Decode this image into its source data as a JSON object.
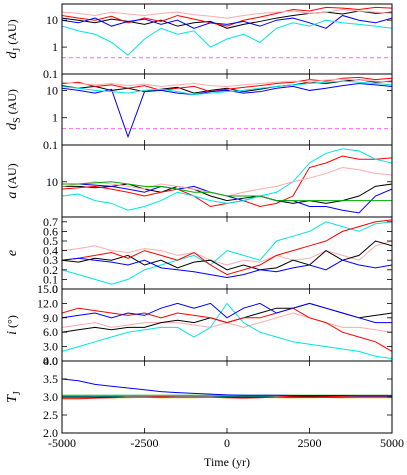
{
  "chart_data": {
    "type": "line",
    "xlabel": "Time (yr)",
    "xlim": [
      -5000,
      5000
    ],
    "xticks": [
      -5000,
      -2500,
      0,
      2500,
      5000
    ],
    "x": [
      -5000,
      -4500,
      -4000,
      -3500,
      -3000,
      -2500,
      -2000,
      -1500,
      -1000,
      -500,
      0,
      500,
      1000,
      1500,
      2000,
      2500,
      3000,
      3500,
      4000,
      4500,
      5000
    ],
    "panels": [
      {
        "ylabel": {
          "text": "d",
          "sub": "J",
          "after": " (AU)"
        },
        "log": true,
        "ylim": [
          0.1,
          40
        ],
        "yticks": [
          0.1,
          1,
          10
        ],
        "hline": {
          "value": 0.4,
          "color": "#ff66ff",
          "dashed": true
        },
        "series": [
          {
            "color": "#000000",
            "values": [
              12,
              10,
              8,
              11,
              9,
              7,
              10,
              6,
              8,
              9,
              5,
              7,
              9,
              12,
              15,
              18,
              20,
              17,
              22,
              18,
              20
            ]
          },
          {
            "color": "#ff0000",
            "values": [
              15,
              12,
              10,
              14,
              8,
              12,
              9,
              15,
              11,
              8,
              6,
              10,
              13,
              18,
              25,
              22,
              30,
              28,
              25,
              30,
              28
            ]
          },
          {
            "color": "#0000ff",
            "values": [
              10,
              8,
              12,
              6,
              9,
              11,
              7,
              10,
              5,
              8,
              7,
              9,
              6,
              10,
              12,
              8,
              5,
              15,
              10,
              8,
              12
            ]
          },
          {
            "color": "#00e5e5",
            "values": [
              6,
              4,
              3,
              1.5,
              0.5,
              2,
              5,
              3,
              4,
              1,
              2,
              3,
              1.5,
              5,
              8,
              6,
              10,
              8,
              7,
              6,
              5
            ]
          },
          {
            "color": "#ffaaaa",
            "values": [
              20,
              18,
              15,
              20,
              17,
              15,
              18,
              20,
              16,
              14,
              12,
              15,
              18,
              20,
              22,
              18,
              20,
              25,
              22,
              20,
              18
            ]
          }
        ]
      },
      {
        "ylabel": {
          "text": "d",
          "sub": "S",
          "after": " (AU)"
        },
        "log": true,
        "ylim": [
          0.1,
          40
        ],
        "yticks": [
          0.1,
          1,
          10
        ],
        "hline": {
          "value": 0.4,
          "color": "#ff66ff",
          "dashed": true
        },
        "series": [
          {
            "color": "#000000",
            "values": [
              15,
              12,
              14,
              10,
              12,
              9,
              11,
              13,
              8,
              10,
              12,
              9,
              11,
              14,
              16,
              20,
              18,
              22,
              25,
              20,
              22
            ]
          },
          {
            "color": "#ff0000",
            "values": [
              18,
              20,
              14,
              16,
              12,
              15,
              10,
              12,
              14,
              9,
              11,
              13,
              15,
              18,
              20,
              25,
              22,
              28,
              30,
              25,
              28
            ]
          },
          {
            "color": "#0000ff",
            "values": [
              12,
              10,
              8,
              11,
              0.2,
              9,
              10,
              8,
              7,
              9,
              10,
              8,
              9,
              12,
              14,
              10,
              12,
              15,
              18,
              16,
              14
            ]
          },
          {
            "color": "#00e5e5",
            "values": [
              14,
              12,
              10,
              9,
              8,
              10,
              11,
              9,
              7,
              8,
              9,
              10,
              12,
              14,
              16,
              18,
              20,
              22,
              20,
              18,
              16
            ]
          },
          {
            "color": "#ffaaaa",
            "values": [
              20,
              18,
              16,
              18,
              15,
              17,
              14,
              16,
              18,
              15,
              14,
              16,
              18,
              20,
              22,
              20,
              24,
              26,
              24,
              22,
              20
            ]
          }
        ]
      },
      {
        "ylabel": {
          "text": "a",
          "after": " (AU)"
        },
        "log": true,
        "ylim": [
          1.8,
          60
        ],
        "yticks": [
          10
        ],
        "series": [
          {
            "color": "#000000",
            "values": [
              8,
              8,
              7.5,
              8,
              9,
              7,
              6,
              8,
              7,
              5,
              4,
              4.5,
              5,
              4,
              3.5,
              4,
              3.5,
              4,
              5,
              8,
              9
            ]
          },
          {
            "color": "#ff0000",
            "values": [
              7,
              7.5,
              8,
              7,
              6,
              5,
              6,
              7,
              5,
              3,
              3.5,
              4,
              3,
              3.5,
              5,
              20,
              25,
              35,
              30,
              30,
              32
            ]
          },
          {
            "color": "#0000ff",
            "values": [
              9,
              9,
              8.5,
              8,
              7,
              6,
              8,
              7,
              8,
              6,
              5,
              4,
              5,
              4,
              4,
              3,
              3,
              2.5,
              2.2,
              5,
              7
            ]
          },
          {
            "color": "#00e5e5",
            "values": [
              5,
              5.5,
              4,
              3.5,
              2.5,
              3,
              4,
              6,
              5,
              4,
              3.5,
              4,
              5,
              6,
              10,
              25,
              40,
              50,
              45,
              30,
              25
            ]
          },
          {
            "color": "#ffaaaa",
            "values": [
              8,
              9,
              10,
              9,
              8,
              7,
              9,
              8,
              7,
              6,
              5,
              6,
              7,
              8,
              10,
              12,
              15,
              20,
              18,
              15,
              14
            ]
          },
          {
            "color": "#00aa00",
            "values": [
              9,
              9,
              9.5,
              10,
              9,
              8,
              8,
              7,
              6,
              6,
              5,
              5,
              5,
              4,
              4,
              4,
              4,
              4,
              4,
              4,
              4
            ]
          }
        ]
      },
      {
        "ylabel": {
          "text": "e"
        },
        "log": false,
        "ylim": [
          0,
          0.75
        ],
        "yticks": [
          0,
          0.1,
          0.2,
          0.3,
          0.4,
          0.5,
          0.6,
          0.7
        ],
        "series": [
          {
            "color": "#ffaaaa",
            "values": [
              0.4,
              0.42,
              0.45,
              0.4,
              0.38,
              0.42,
              0.4,
              0.35,
              0.38,
              0.3,
              0.25,
              0.3,
              0.28,
              0.35,
              0.3,
              0.32,
              0.4,
              0.35,
              0.3,
              0.45,
              0.5
            ]
          },
          {
            "color": "#00e5e5",
            "values": [
              0.2,
              0.15,
              0.1,
              0.05,
              0.1,
              0.2,
              0.25,
              0.3,
              0.35,
              0.25,
              0.4,
              0.35,
              0.3,
              0.5,
              0.55,
              0.6,
              0.7,
              0.65,
              0.6,
              0.68,
              0.7
            ]
          },
          {
            "color": "#000000",
            "values": [
              0.3,
              0.28,
              0.32,
              0.3,
              0.35,
              0.25,
              0.3,
              0.22,
              0.28,
              0.3,
              0.2,
              0.25,
              0.2,
              0.22,
              0.3,
              0.25,
              0.4,
              0.3,
              0.35,
              0.5,
              0.45
            ]
          },
          {
            "color": "#ff0000",
            "values": [
              0.3,
              0.32,
              0.35,
              0.38,
              0.32,
              0.4,
              0.35,
              0.3,
              0.38,
              0.25,
              0.15,
              0.2,
              0.25,
              0.35,
              0.4,
              0.45,
              0.5,
              0.6,
              0.65,
              0.7,
              0.72
            ]
          },
          {
            "color": "#0000ff",
            "values": [
              0.3,
              0.32,
              0.3,
              0.28,
              0.25,
              0.3,
              0.22,
              0.2,
              0.18,
              0.15,
              0.12,
              0.15,
              0.2,
              0.18,
              0.22,
              0.25,
              0.2,
              0.3,
              0.25,
              0.22,
              0.25
            ]
          }
        ]
      },
      {
        "ylabel": {
          "text": "i",
          "after": " (°)"
        },
        "log": false,
        "ylim": [
          0,
          15
        ],
        "yticks": [
          {
            "value": 0,
            "label": "0.0"
          },
          {
            "value": 3,
            "label": "3.0"
          },
          {
            "value": 6,
            "label": "6.0"
          },
          {
            "value": 9,
            "label": "9.0"
          },
          {
            "value": 12,
            "label": "12.0"
          },
          {
            "value": 15,
            "label": "15.0"
          }
        ],
        "series": [
          {
            "color": "#ffaaaa",
            "values": [
              7,
              7.5,
              8,
              7,
              7.5,
              8,
              8,
              8,
              7.5,
              7,
              8,
              7,
              8,
              9,
              10,
              9,
              8,
              7,
              7,
              6.5,
              6
            ]
          },
          {
            "color": "#00e5e5",
            "values": [
              2,
              3,
              4,
              5,
              6,
              6.5,
              7,
              7,
              5,
              7,
              12,
              8,
              6,
              5,
              4,
              3.5,
              3,
              2.5,
              2,
              1,
              0.5
            ]
          },
          {
            "color": "#000000",
            "values": [
              6,
              6.5,
              7,
              6.5,
              7,
              7,
              8,
              8.5,
              8,
              9,
              8,
              9,
              10,
              11,
              11,
              12,
              11,
              10,
              9,
              9.5,
              10
            ]
          },
          {
            "color": "#ff0000",
            "values": [
              10,
              11,
              10.5,
              10,
              9.5,
              10,
              9,
              10,
              9.5,
              9,
              8,
              9,
              9,
              10,
              11,
              9,
              8,
              6,
              5,
              4,
              2
            ]
          },
          {
            "color": "#0000ff",
            "values": [
              9,
              9.5,
              10,
              9,
              10,
              9.5,
              11,
              12,
              11,
              12,
              9,
              11,
              12,
              10,
              11,
              12,
              11,
              10,
              9,
              8,
              8
            ]
          }
        ]
      },
      {
        "ylabel": {
          "text": "T",
          "sub": "J"
        },
        "log": false,
        "ylim": [
          2,
          4
        ],
        "yticks": [
          {
            "value": 2,
            "label": "2.0"
          },
          {
            "value": 2.5,
            "label": "2.5"
          },
          {
            "value": 3,
            "label": "3.0"
          },
          {
            "value": 3.5,
            "label": "3.5"
          },
          {
            "value": 4,
            "label": "4.0"
          }
        ],
        "series": [
          {
            "color": "#00aa00",
            "values": [
              3.05,
              3.05,
              3.05,
              3.05,
              3.05,
              3.05,
              3.05,
              3.05,
              3.05,
              3.05,
              3.05,
              3.05,
              3.05,
              3.05,
              3.05,
              3.05,
              3.05,
              3.05,
              3.05,
              3.05,
              3.05
            ]
          },
          {
            "color": "#00e5e5",
            "values": [
              3.02,
              3.02,
              3.01,
              3.02,
              3.03,
              3.02,
              3.01,
              3.02,
              3.02,
              3.01,
              3.02,
              3.03,
              3.02,
              3.02,
              3.01,
              3.02,
              3.02,
              3.03,
              3.02,
              3.02,
              3.02
            ]
          },
          {
            "color": "#e5b800",
            "values": [
              2.98,
              2.98,
              2.99,
              2.98,
              2.98,
              2.99,
              2.98,
              2.98,
              2.98,
              2.99,
              2.98,
              2.98,
              2.99,
              2.98,
              2.98,
              2.98,
              2.99,
              2.98,
              2.98,
              2.98,
              2.98
            ]
          },
          {
            "color": "#000000",
            "values": [
              3.0,
              3.0,
              3.0,
              3.0,
              3.0,
              3.0,
              3.0,
              3.0,
              3.0,
              3.0,
              3.0,
              3.0,
              3.0,
              3.0,
              3.0,
              3.0,
              3.0,
              3.0,
              3.0,
              3.0,
              3.0
            ]
          },
          {
            "color": "#ff0000",
            "values": [
              2.95,
              2.95,
              2.97,
              2.98,
              3.0,
              3.0,
              3.01,
              3.0,
              3.0,
              3.0,
              2.98,
              2.97,
              2.98,
              3.0,
              3.02,
              3.03,
              3.02,
              3.01,
              3.0,
              3.0,
              3.0
            ]
          },
          {
            "color": "#0000ff",
            "values": [
              3.5,
              3.45,
              3.35,
              3.3,
              3.25,
              3.2,
              3.15,
              3.12,
              3.1,
              3.08,
              3.06,
              3.05,
              3.05,
              3.05,
              3.04,
              3.04,
              3.04,
              3.04,
              3.03,
              3.03,
              3.03
            ]
          },
          {
            "color": "#ff0000",
            "values": [
              2.0,
              2.0,
              2.0,
              2.0,
              2.0,
              2.0,
              2.0,
              2.0,
              2.0,
              2.0,
              2.0,
              2.0,
              2.0,
              2.0,
              2.0,
              2.0,
              2.0,
              2.0,
              2.0,
              2.0,
              2.0
            ]
          }
        ]
      }
    ]
  }
}
